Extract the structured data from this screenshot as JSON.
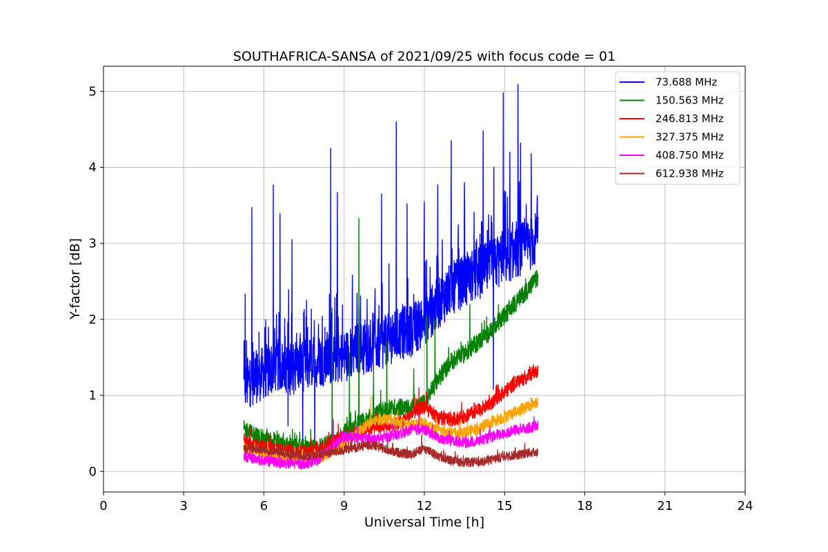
{
  "chart_data": {
    "type": "line",
    "title": "SOUTHAFRICA-SANSA of 2021/09/25 with focus code = 01",
    "xlabel": "Universal Time [h]",
    "ylabel": "Y-factor [dB]",
    "xlim": [
      0,
      24
    ],
    "ylim": [
      -0.27,
      5.33
    ],
    "xticks": [
      0,
      3,
      6,
      9,
      12,
      15,
      18,
      21,
      24
    ],
    "yticks": [
      0,
      1,
      2,
      3,
      4,
      5
    ],
    "grid": true,
    "legend_position": "top-right",
    "series": [
      {
        "name": "73.688 MHz",
        "color": "#0000ff",
        "noise": 0.35,
        "x": [
          5.25,
          5.5,
          6.0,
          6.5,
          7.0,
          7.5,
          8.0,
          8.5,
          9.0,
          9.5,
          10.0,
          10.5,
          11.0,
          11.5,
          12.0,
          12.5,
          13.0,
          13.5,
          14.0,
          14.5,
          15.0,
          15.5,
          16.0,
          16.25
        ],
        "y": [
          1.1,
          1.2,
          1.3,
          1.4,
          1.35,
          1.4,
          1.45,
          1.5,
          1.5,
          1.6,
          1.65,
          1.7,
          1.8,
          1.85,
          2.0,
          2.2,
          2.4,
          2.5,
          2.6,
          2.7,
          2.8,
          2.9,
          3.0,
          3.1
        ],
        "spikes": [
          [
            5.3,
            2.33
          ],
          [
            5.55,
            3.47
          ],
          [
            6.35,
            3.77
          ],
          [
            6.6,
            3.39
          ],
          [
            7.05,
            3.05
          ],
          [
            8.5,
            4.25
          ],
          [
            8.75,
            3.67
          ],
          [
            10.4,
            3.65
          ],
          [
            10.95,
            4.6
          ],
          [
            11.35,
            3.52
          ],
          [
            12.0,
            3.55
          ],
          [
            12.5,
            3.77
          ],
          [
            13.0,
            4.35
          ],
          [
            13.5,
            3.8
          ],
          [
            14.2,
            4.48
          ],
          [
            14.6,
            4.0
          ],
          [
            14.95,
            4.98
          ],
          [
            15.2,
            4.2
          ],
          [
            15.5,
            5.09
          ],
          [
            15.6,
            4.32
          ],
          [
            16.0,
            4.18
          ]
        ],
        "dips": [
          [
            6.9,
            0.6
          ],
          [
            7.45,
            0.3
          ],
          [
            7.9,
            0.3
          ],
          [
            14.58,
            1.08
          ]
        ]
      },
      {
        "name": "150.563 MHz",
        "color": "#008000",
        "noise": 0.12,
        "x": [
          5.25,
          5.5,
          6.0,
          6.5,
          7.0,
          7.5,
          8.0,
          8.5,
          9.0,
          9.5,
          10.0,
          10.5,
          11.0,
          11.5,
          12.0,
          12.5,
          13.0,
          13.5,
          14.0,
          14.5,
          15.0,
          15.5,
          16.0,
          16.25
        ],
        "y": [
          0.55,
          0.5,
          0.42,
          0.38,
          0.32,
          0.3,
          0.3,
          0.38,
          0.5,
          0.62,
          0.72,
          0.8,
          0.85,
          0.82,
          0.9,
          1.2,
          1.45,
          1.55,
          1.7,
          1.85,
          2.05,
          2.25,
          2.45,
          2.55
        ],
        "spikes": [
          [
            8.55,
            2.15
          ],
          [
            9.2,
            1.55
          ],
          [
            9.55,
            3.33
          ],
          [
            10.1,
            1.4
          ],
          [
            10.6,
            1.72
          ],
          [
            11.6,
            1.35
          ],
          [
            12.1,
            2.05
          ],
          [
            12.4,
            2.0
          ],
          [
            13.7,
            2.2
          ]
        ],
        "dips": []
      },
      {
        "name": "246.813 MHz",
        "color": "#ff0000",
        "noise": 0.09,
        "x": [
          5.25,
          5.5,
          6.0,
          6.5,
          7.0,
          7.5,
          8.0,
          8.5,
          9.0,
          9.5,
          10.0,
          10.5,
          11.0,
          11.5,
          12.0,
          12.5,
          13.0,
          13.5,
          14.0,
          14.5,
          15.0,
          15.5,
          16.0,
          16.25
        ],
        "y": [
          0.38,
          0.36,
          0.32,
          0.28,
          0.26,
          0.25,
          0.28,
          0.38,
          0.45,
          0.52,
          0.58,
          0.6,
          0.62,
          0.75,
          0.85,
          0.7,
          0.68,
          0.72,
          0.8,
          0.9,
          1.05,
          1.18,
          1.28,
          1.32
        ],
        "spikes": [
          [
            11.8,
            1.1
          ],
          [
            12.1,
            1.05
          ]
        ],
        "dips": []
      },
      {
        "name": "327.375 MHz",
        "color": "#ffa500",
        "noise": 0.08,
        "x": [
          5.25,
          5.5,
          6.0,
          6.5,
          7.0,
          7.5,
          8.0,
          8.5,
          9.0,
          9.5,
          10.0,
          10.5,
          11.0,
          11.5,
          12.0,
          12.5,
          13.0,
          13.5,
          14.0,
          14.5,
          15.0,
          15.5,
          16.0,
          16.25
        ],
        "y": [
          0.3,
          0.28,
          0.22,
          0.2,
          0.18,
          0.16,
          0.18,
          0.25,
          0.35,
          0.5,
          0.65,
          0.7,
          0.65,
          0.6,
          0.62,
          0.55,
          0.5,
          0.5,
          0.56,
          0.65,
          0.72,
          0.8,
          0.88,
          0.92
        ],
        "spikes": [
          [
            10.0,
            0.98
          ],
          [
            11.0,
            0.8
          ]
        ],
        "dips": []
      },
      {
        "name": "408.750 MHz",
        "color": "#ff00ff",
        "noise": 0.07,
        "x": [
          5.25,
          5.5,
          6.0,
          6.5,
          7.0,
          7.5,
          8.0,
          8.5,
          9.0,
          9.5,
          10.0,
          10.5,
          11.0,
          11.5,
          12.0,
          12.5,
          13.0,
          13.5,
          14.0,
          14.5,
          15.0,
          15.5,
          16.0,
          16.25
        ],
        "y": [
          0.2,
          0.18,
          0.14,
          0.12,
          0.1,
          0.1,
          0.15,
          0.3,
          0.45,
          0.45,
          0.42,
          0.45,
          0.48,
          0.55,
          0.55,
          0.45,
          0.4,
          0.38,
          0.4,
          0.45,
          0.5,
          0.55,
          0.58,
          0.6
        ],
        "spikes": [
          [
            8.6,
            0.68
          ],
          [
            11.8,
            0.78
          ]
        ],
        "dips": []
      },
      {
        "name": "612.938 MHz",
        "color": "#a52a2a",
        "noise": 0.06,
        "x": [
          5.25,
          5.5,
          6.0,
          6.5,
          7.0,
          7.5,
          8.0,
          8.5,
          9.0,
          9.5,
          10.0,
          10.5,
          11.0,
          11.5,
          12.0,
          12.5,
          13.0,
          13.5,
          14.0,
          14.5,
          15.0,
          15.5,
          16.0,
          16.25
        ],
        "y": [
          0.3,
          0.3,
          0.28,
          0.25,
          0.22,
          0.2,
          0.22,
          0.25,
          0.28,
          0.32,
          0.35,
          0.3,
          0.25,
          0.22,
          0.3,
          0.2,
          0.14,
          0.12,
          0.12,
          0.15,
          0.2,
          0.22,
          0.25,
          0.25
        ],
        "spikes": [
          [
            11.9,
            0.48
          ]
        ],
        "dips": []
      }
    ]
  }
}
